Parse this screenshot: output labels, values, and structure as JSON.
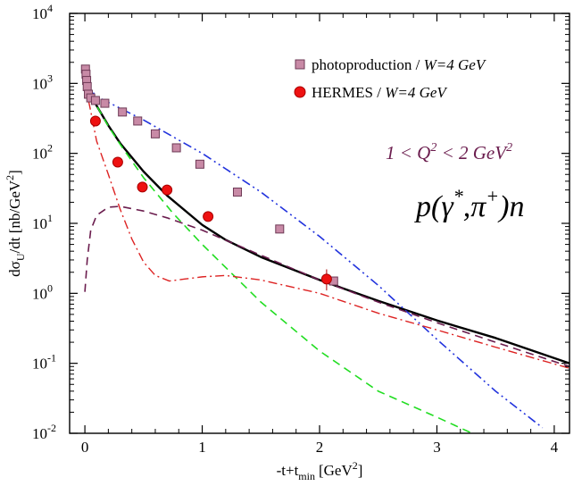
{
  "chart_data": {
    "type": "scatter",
    "title": "",
    "xlabel": "-t+t",
    "xlabel_sub": "min",
    "xlabel_unit": "[GeV",
    "xlabel_unit_sup": "2",
    "xlabel_unit_close": "]",
    "ylabel": "dσ",
    "ylabel_sub": "U",
    "ylabel_rest": "/dt [nb/GeV",
    "ylabel_sup": "2",
    "ylabel_close": "]",
    "xlim": [
      -0.13,
      4.13
    ],
    "ylim": [
      0.01,
      10000
    ],
    "yscale": "log",
    "x_ticks": [
      0,
      1,
      2,
      3,
      4
    ],
    "x_tick_labels": [
      "0",
      "1",
      "2",
      "3",
      "4"
    ],
    "y_ticks": [
      0.01,
      0.1,
      1,
      10,
      100,
      1000,
      10000
    ],
    "y_tick_labels": [
      {
        "base": "10",
        "exp": "-2"
      },
      {
        "base": "10",
        "exp": "-1"
      },
      {
        "base": "10",
        "exp": "0"
      },
      {
        "base": "10",
        "exp": "1"
      },
      {
        "base": "10",
        "exp": "2"
      },
      {
        "base": "10",
        "exp": "3"
      },
      {
        "base": "10",
        "exp": "4"
      }
    ],
    "legend_position": "top-right",
    "legend": [
      {
        "marker": "square",
        "label": "photoproduction / ",
        "label_italic": "W=4 GeV"
      },
      {
        "marker": "circle",
        "label": "HERMES / ",
        "label_italic": "W=4 GeV"
      }
    ],
    "annotations": {
      "q2_range": {
        "a": "1 < Q",
        "sup": "2",
        "b": " < 2 GeV",
        "sup2": "2"
      },
      "reaction": {
        "a": "p(γ",
        "sup": "*",
        "b": ",π",
        "sup2": "+",
        "c": ")n"
      }
    },
    "series": [
      {
        "name": "photoproduction / W=4 GeV",
        "kind": "markers",
        "marker": "square",
        "color": "#c88aa6",
        "stroke": "#6e3a56",
        "points": [
          [
            0.005,
            1600
          ],
          [
            0.01,
            1350
          ],
          [
            0.015,
            1100
          ],
          [
            0.02,
            900
          ],
          [
            0.03,
            700
          ],
          [
            0.05,
            620
          ],
          [
            0.09,
            570
          ],
          [
            0.17,
            520
          ],
          [
            0.32,
            390
          ],
          [
            0.45,
            290
          ],
          [
            0.6,
            190
          ],
          [
            0.78,
            120
          ],
          [
            0.98,
            70
          ],
          [
            1.3,
            28
          ],
          [
            1.66,
            8.3
          ],
          [
            2.12,
            1.5
          ]
        ]
      },
      {
        "name": "HERMES / W=4 GeV",
        "kind": "markers",
        "marker": "circle",
        "color": "#ee1111",
        "stroke": "#aa0000",
        "points": [
          [
            0.09,
            290
          ],
          [
            0.28,
            75
          ],
          [
            0.49,
            33
          ],
          [
            0.7,
            30
          ],
          [
            1.05,
            12.5
          ],
          [
            2.06,
            1.6
          ]
        ],
        "error_bars": [
          [
            2.06,
            1.1,
            2.2
          ]
        ]
      },
      {
        "kind": "line",
        "color": "#000000",
        "dash": "solid",
        "width": 2.4,
        "points": [
          [
            0.0,
            1000
          ],
          [
            0.05,
            680
          ],
          [
            0.1,
            480
          ],
          [
            0.2,
            250
          ],
          [
            0.3,
            140
          ],
          [
            0.5,
            55
          ],
          [
            0.7,
            25
          ],
          [
            1.0,
            9.5
          ],
          [
            1.2,
            5.8
          ],
          [
            1.5,
            3.3
          ],
          [
            2.0,
            1.55
          ],
          [
            2.5,
            0.78
          ],
          [
            3.0,
            0.41
          ],
          [
            3.5,
            0.23
          ],
          [
            4.13,
            0.1
          ]
        ]
      },
      {
        "kind": "line",
        "color": "#22dd22",
        "dash": "dashed",
        "width": 1.6,
        "points": [
          [
            0.0,
            1000
          ],
          [
            0.05,
            680
          ],
          [
            0.1,
            480
          ],
          [
            0.2,
            245
          ],
          [
            0.3,
            135
          ],
          [
            0.5,
            45
          ],
          [
            0.75,
            14
          ],
          [
            1.0,
            5
          ],
          [
            1.5,
            0.75
          ],
          [
            2.0,
            0.15
          ],
          [
            2.5,
            0.04
          ],
          [
            3.0,
            0.017
          ],
          [
            3.3,
            0.01
          ]
        ]
      },
      {
        "kind": "line",
        "color": "#2233dd",
        "dash": "dash-dot-dot",
        "width": 1.6,
        "points": [
          [
            0.0,
            1000
          ],
          [
            0.1,
            650
          ],
          [
            0.5,
            300
          ],
          [
            1.0,
            100
          ],
          [
            1.5,
            28
          ],
          [
            2.0,
            6.5
          ],
          [
            2.5,
            1.3
          ],
          [
            3.0,
            0.22
          ],
          [
            3.5,
            0.04
          ],
          [
            3.9,
            0.012
          ]
        ]
      },
      {
        "kind": "line",
        "color": "#dd2222",
        "dash": "dash-dot",
        "width": 1.4,
        "points": [
          [
            0.0,
            1000
          ],
          [
            0.05,
            400
          ],
          [
            0.1,
            150
          ],
          [
            0.2,
            50
          ],
          [
            0.3,
            16
          ],
          [
            0.4,
            6
          ],
          [
            0.5,
            2.8
          ],
          [
            0.6,
            1.8
          ],
          [
            0.72,
            1.5
          ],
          [
            0.85,
            1.6
          ],
          [
            1.0,
            1.72
          ],
          [
            1.2,
            1.8
          ],
          [
            1.5,
            1.55
          ],
          [
            2.0,
            1.0
          ],
          [
            2.5,
            0.52
          ],
          [
            3.0,
            0.3
          ],
          [
            3.5,
            0.17
          ],
          [
            4.13,
            0.085
          ]
        ]
      },
      {
        "kind": "line",
        "color": "#6b1d4e",
        "dash": "dashed",
        "width": 1.6,
        "points": [
          [
            0.0,
            1.05
          ],
          [
            0.02,
            3
          ],
          [
            0.05,
            8
          ],
          [
            0.1,
            13
          ],
          [
            0.2,
            17
          ],
          [
            0.3,
            17.5
          ],
          [
            0.5,
            15
          ],
          [
            0.7,
            12
          ],
          [
            1.0,
            8
          ],
          [
            1.5,
            3.5
          ],
          [
            2.0,
            1.55
          ],
          [
            2.5,
            0.75
          ],
          [
            3.0,
            0.38
          ],
          [
            3.5,
            0.2
          ],
          [
            4.13,
            0.09
          ]
        ]
      }
    ]
  }
}
